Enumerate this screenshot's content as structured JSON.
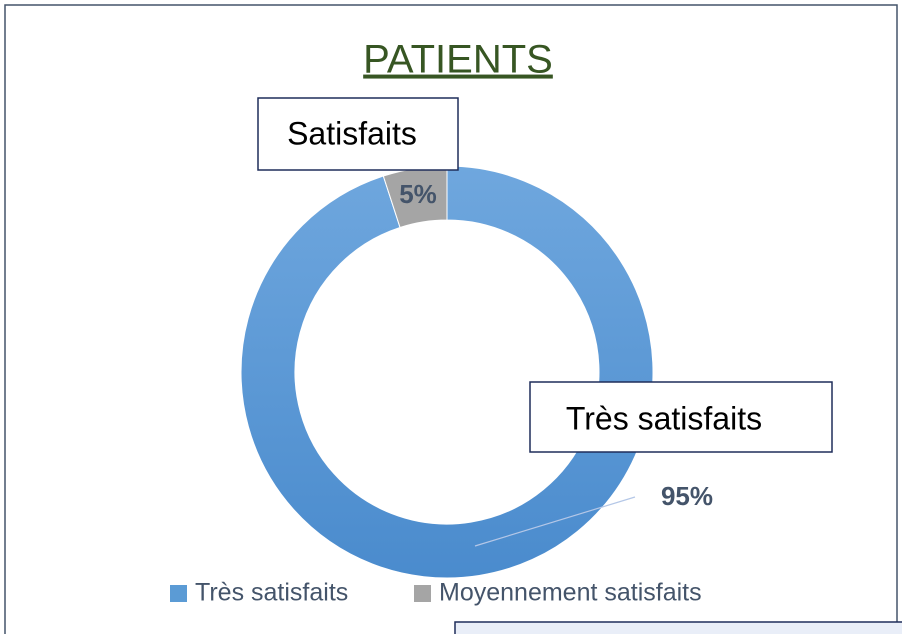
{
  "chart_data": {
    "type": "donut",
    "title": "PATIENTS",
    "categories": [
      "Très satisfaits",
      "Moyennement satisfaits"
    ],
    "values": [
      95,
      5
    ],
    "value_labels": [
      "95%",
      "5%"
    ],
    "colors": [
      "#5b9bd5",
      "#a5a5a5"
    ],
    "legend": "bottom",
    "annotations": [
      "Satisfaits",
      "Très satisfaits"
    ]
  }
}
